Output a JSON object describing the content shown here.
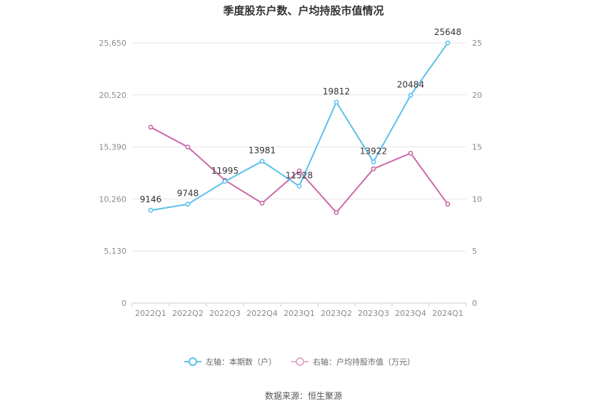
{
  "chart_data": {
    "type": "line",
    "title": "季度股东户数、户均持股市值情况",
    "categories": [
      "2022Q1",
      "2022Q2",
      "2022Q3",
      "2022Q4",
      "2023Q1",
      "2023Q2",
      "2023Q3",
      "2023Q4",
      "2024Q1"
    ],
    "left_axis": {
      "ticks": [
        0,
        5130,
        10260,
        15390,
        20520,
        25650
      ],
      "tick_labels": [
        "0",
        "5,130",
        "10,260",
        "15,390",
        "20,520",
        "25,650"
      ],
      "ylim": [
        0,
        25650
      ]
    },
    "right_axis": {
      "ticks": [
        0,
        5,
        10,
        15,
        20,
        25
      ],
      "tick_labels": [
        "0",
        "5",
        "10",
        "15",
        "20",
        "25"
      ],
      "ylim": [
        0,
        25
      ]
    },
    "series": [
      {
        "name": "左轴：本期数（户）",
        "axis": "left",
        "color": "#5bc0eb",
        "values": [
          9146,
          9748,
          11995,
          13981,
          11528,
          19812,
          13922,
          20484,
          25648
        ],
        "labels": [
          "9146",
          "9748",
          "11995",
          "13981",
          "11528",
          "19812",
          "13922",
          "20484",
          "25648"
        ]
      },
      {
        "name": "右轴：户均持股市值（万元）",
        "axis": "right",
        "color": "#cc6aa8",
        "values": [
          16.9,
          15.0,
          11.8,
          9.6,
          12.7,
          8.7,
          12.9,
          14.4,
          9.5
        ]
      }
    ],
    "grid": true,
    "legend": "bottom"
  },
  "source": "数据来源：恒生聚源"
}
